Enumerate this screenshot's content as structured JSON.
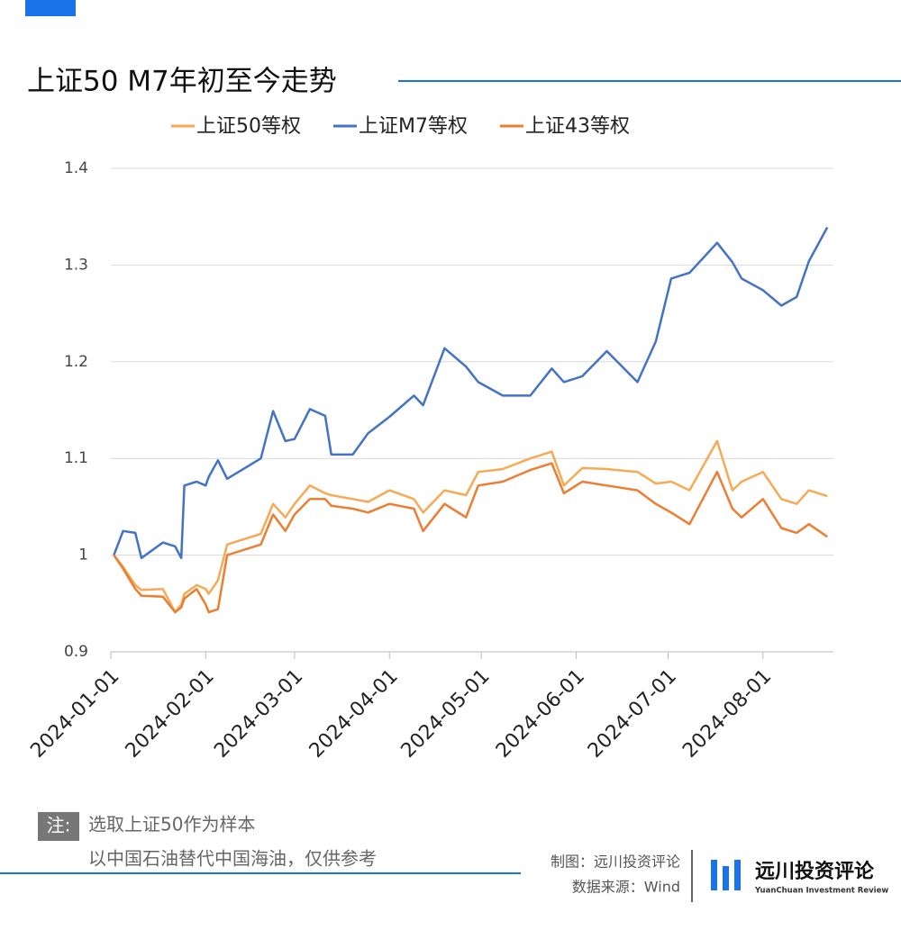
{
  "chart_data": {
    "type": "line",
    "title": "上证50 M7年初至今走势",
    "x": [
      "2024-01-02",
      "2024-01-05",
      "2024-01-09",
      "2024-01-11",
      "2024-01-18",
      "2024-01-22",
      "2024-01-24",
      "2024-01-25",
      "2024-01-29",
      "2024-02-01",
      "2024-02-02",
      "2024-02-05",
      "2024-02-08",
      "2024-02-19",
      "2024-02-23",
      "2024-02-27",
      "2024-03-01",
      "2024-03-06",
      "2024-03-11",
      "2024-03-13",
      "2024-03-20",
      "2024-03-25",
      "2024-04-01",
      "2024-04-09",
      "2024-04-12",
      "2024-04-19",
      "2024-04-26",
      "2024-04-30",
      "2024-05-08",
      "2024-05-17",
      "2024-05-24",
      "2024-05-28",
      "2024-06-03",
      "2024-06-11",
      "2024-06-21",
      "2024-06-27",
      "2024-07-02",
      "2024-07-08",
      "2024-07-17",
      "2024-07-22",
      "2024-07-25",
      "2024-08-01",
      "2024-08-07",
      "2024-08-12",
      "2024-08-16",
      "2024-08-22"
    ],
    "series": [
      {
        "name": "上证50等权",
        "color": "#f7aa55",
        "values": [
          1.0,
          0.988,
          0.969,
          0.964,
          0.965,
          0.941,
          0.949,
          0.96,
          0.969,
          0.965,
          0.96,
          0.974,
          1.011,
          1.022,
          1.053,
          1.039,
          1.053,
          1.072,
          1.064,
          1.062,
          1.058,
          1.055,
          1.067,
          1.058,
          1.044,
          1.067,
          1.062,
          1.086,
          1.089,
          1.1,
          1.107,
          1.072,
          1.09,
          1.089,
          1.086,
          1.074,
          1.076,
          1.067,
          1.118,
          1.067,
          1.076,
          1.086,
          1.058,
          1.053,
          1.067,
          1.061
        ]
      },
      {
        "name": "上证M7等权",
        "color": "#4472c4",
        "values": [
          1.0,
          1.025,
          1.023,
          0.997,
          1.013,
          1.009,
          0.997,
          1.072,
          1.076,
          1.072,
          1.081,
          1.098,
          1.079,
          1.1,
          1.149,
          1.118,
          1.12,
          1.151,
          1.144,
          1.104,
          1.104,
          1.126,
          1.143,
          1.165,
          1.155,
          1.214,
          1.195,
          1.179,
          1.165,
          1.165,
          1.193,
          1.179,
          1.185,
          1.211,
          1.179,
          1.221,
          1.286,
          1.292,
          1.323,
          1.303,
          1.286,
          1.274,
          1.258,
          1.267,
          1.304,
          1.339
        ]
      },
      {
        "name": "上证43等权",
        "color": "#ed7d31",
        "values": [
          1.0,
          0.986,
          0.965,
          0.958,
          0.957,
          0.941,
          0.946,
          0.955,
          0.965,
          0.949,
          0.941,
          0.944,
          1.0,
          1.011,
          1.042,
          1.025,
          1.042,
          1.058,
          1.058,
          1.051,
          1.048,
          1.044,
          1.053,
          1.048,
          1.025,
          1.053,
          1.039,
          1.072,
          1.076,
          1.088,
          1.095,
          1.064,
          1.076,
          1.072,
          1.067,
          1.053,
          1.044,
          1.032,
          1.086,
          1.048,
          1.039,
          1.058,
          1.028,
          1.023,
          1.032,
          1.019
        ]
      }
    ],
    "xlim": [
      "2024-01-01",
      "2024-08-24"
    ],
    "xticks": [
      "2024-01-01",
      "2024-02-01",
      "2024-03-01",
      "2024-04-01",
      "2024-05-01",
      "2024-06-01",
      "2024-07-01",
      "2024-08-01"
    ],
    "ylim": [
      0.9,
      1.4
    ],
    "yticks": [
      0.9,
      1,
      1.1,
      1.2,
      1.3,
      1.4
    ],
    "grid": true
  },
  "note": {
    "tag": "注:",
    "lines": [
      "选取上证50作为样本",
      "以中国石油替代中国海油，仅供参考"
    ]
  },
  "credits": {
    "maker": "制图：远川投资评论",
    "source": "数据来源：Wind"
  },
  "logo": {
    "name": "远川投资评论",
    "subtitle": "YuanChuan Investment Review"
  }
}
